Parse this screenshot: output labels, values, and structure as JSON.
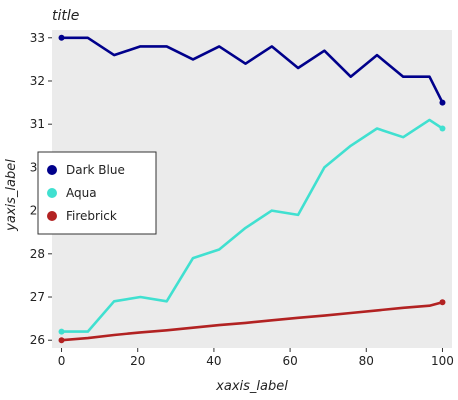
{
  "chart_data": {
    "type": "line",
    "title": "title",
    "xlabel": "xaxis_label",
    "ylabel": "yaxis_label",
    "xlim": [
      -2.5,
      102.5
    ],
    "ylim": [
      25.82,
      33.18
    ],
    "x_ticks": [
      0,
      20,
      40,
      60,
      80,
      100
    ],
    "y_ticks": [
      26,
      27,
      28,
      29,
      30,
      31,
      32,
      33
    ],
    "grid": false,
    "legend_position": "left",
    "series": [
      {
        "name": "Dark Blue",
        "color": "#00008b",
        "x": [
          0,
          6.9,
          13.8,
          20.7,
          27.6,
          34.5,
          41.4,
          48.3,
          55.2,
          62.1,
          69.0,
          75.9,
          82.8,
          89.7,
          96.6,
          100
        ],
        "y": [
          33.0,
          33.0,
          32.6,
          32.8,
          32.8,
          32.5,
          32.8,
          32.4,
          32.8,
          32.3,
          32.7,
          32.1,
          32.6,
          32.1,
          32.1,
          31.5
        ]
      },
      {
        "name": "Aqua",
        "color": "#40e0d0",
        "x": [
          0,
          6.9,
          13.8,
          20.7,
          27.6,
          34.5,
          41.4,
          48.3,
          55.2,
          62.1,
          69.0,
          75.9,
          82.8,
          89.7,
          96.6,
          100
        ],
        "y": [
          26.2,
          26.2,
          26.9,
          27.0,
          26.9,
          27.9,
          28.1,
          28.6,
          29.0,
          28.9,
          30.0,
          30.5,
          30.9,
          30.7,
          31.1,
          30.9
        ]
      },
      {
        "name": "Firebrick",
        "color": "#b22222",
        "x": [
          0,
          6.9,
          13.8,
          20.7,
          27.6,
          34.5,
          41.4,
          48.3,
          55.2,
          62.1,
          69.0,
          75.9,
          82.8,
          89.7,
          96.6,
          100
        ],
        "y": [
          26.0,
          26.05,
          26.12,
          26.18,
          26.23,
          26.29,
          26.35,
          26.4,
          26.46,
          26.52,
          26.57,
          26.63,
          26.69,
          26.75,
          26.8,
          26.88
        ]
      }
    ]
  }
}
